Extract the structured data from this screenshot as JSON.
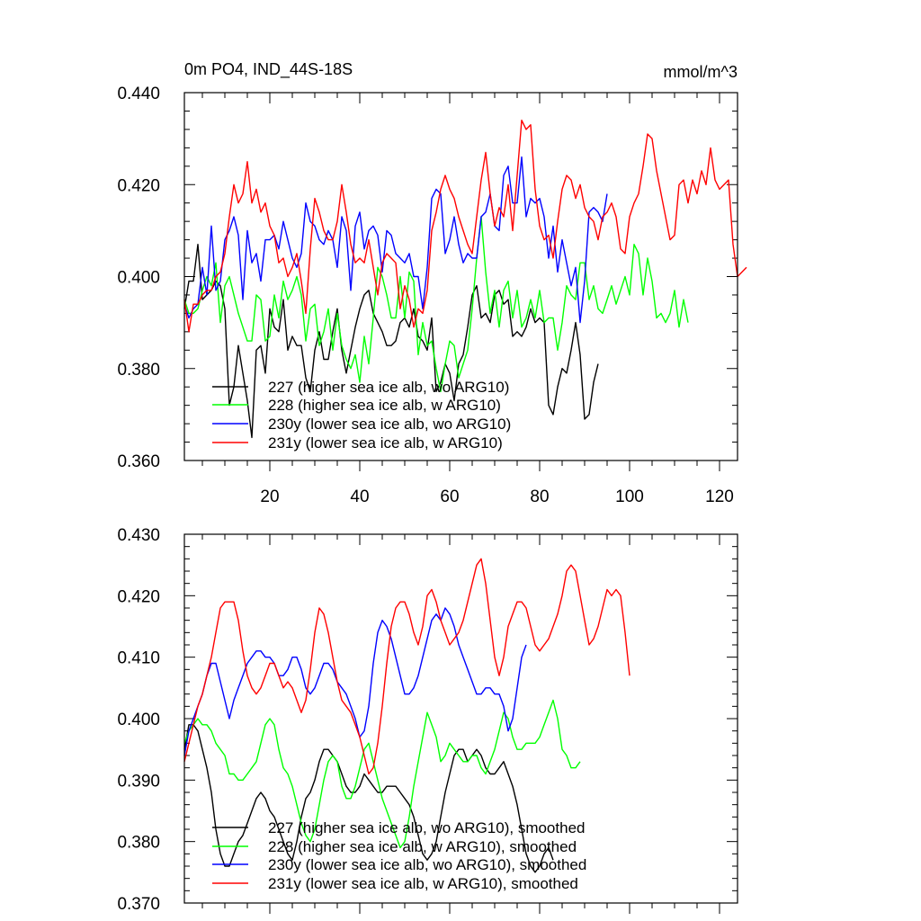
{
  "chart_data": [
    {
      "type": "line",
      "title": "0m PO4, IND_44S-18S",
      "units": "mmol/m^3",
      "xlim": [
        1,
        124
      ],
      "ylim": [
        0.36,
        0.44
      ],
      "x_ticks": [
        20,
        40,
        60,
        80,
        100,
        120
      ],
      "y_ticks": [
        "0.360",
        "0.380",
        "0.400",
        "0.420",
        "0.440"
      ],
      "legend": "bottom-left inside",
      "series": [
        {
          "name": "227 (higher sea ice alb, wo ARG10)",
          "color": "#000000",
          "y": [
            0.393,
            0.399,
            0.399,
            0.407,
            0.395,
            0.396,
            0.397,
            0.399,
            0.398,
            0.393,
            0.372,
            0.376,
            0.385,
            0.379,
            0.373,
            0.365,
            0.384,
            0.385,
            0.379,
            0.393,
            0.389,
            0.388,
            0.395,
            0.384,
            0.387,
            0.385,
            0.385,
            0.378,
            0.375,
            0.384,
            0.388,
            0.382,
            0.382,
            0.388,
            0.393,
            0.384,
            0.379,
            0.384,
            0.389,
            0.393,
            0.396,
            0.397,
            0.392,
            0.39,
            0.388,
            0.385,
            0.385,
            0.386,
            0.39,
            0.391,
            0.389,
            0.393,
            0.387,
            0.386,
            0.384,
            0.391,
            0.375,
            0.377,
            0.381,
            0.379,
            0.373,
            0.381,
            0.383,
            0.389,
            0.396,
            0.398,
            0.391,
            0.392,
            0.39,
            0.396,
            0.397,
            0.394,
            0.395,
            0.387,
            0.388,
            0.387,
            0.389,
            0.393,
            0.39,
            0.391,
            0.39,
            0.372,
            0.37,
            0.376,
            0.38,
            0.379,
            0.384,
            0.39,
            0.383,
            0.369,
            0.37,
            0.377,
            0.381
          ]
        },
        {
          "name": "228 (higher sea ice alb, w ARG10)",
          "color": "#00ff00",
          "y": [
            0.395,
            0.392,
            0.392,
            0.393,
            0.397,
            0.4,
            0.398,
            0.403,
            0.39,
            0.398,
            0.4,
            0.396,
            0.392,
            0.389,
            0.386,
            0.386,
            0.396,
            0.395,
            0.386,
            0.387,
            0.396,
            0.391,
            0.399,
            0.395,
            0.397,
            0.4,
            0.396,
            0.386,
            0.393,
            0.394,
            0.385,
            0.388,
            0.393,
            0.384,
            0.392,
            0.385,
            0.382,
            0.38,
            0.383,
            0.377,
            0.387,
            0.381,
            0.391,
            0.402,
            0.4,
            0.396,
            0.391,
            0.391,
            0.4,
            0.391,
            0.401,
            0.399,
            0.383,
            0.39,
            0.385,
            0.386,
            0.38,
            0.375,
            0.381,
            0.386,
            0.385,
            0.378,
            0.381,
            0.384,
            0.393,
            0.404,
            0.413,
            0.401,
            0.392,
            0.397,
            0.389,
            0.397,
            0.399,
            0.391,
            0.397,
            0.389,
            0.391,
            0.395,
            0.391,
            0.397,
            0.39,
            0.391,
            0.391,
            0.384,
            0.39,
            0.398,
            0.396,
            0.395,
            0.403,
            0.403,
            0.395,
            0.398,
            0.393,
            0.392,
            0.395,
            0.398,
            0.394,
            0.397,
            0.4,
            0.396,
            0.407,
            0.405,
            0.396,
            0.404,
            0.399,
            0.391,
            0.392,
            0.39,
            0.392,
            0.397,
            0.389,
            0.395,
            0.39
          ]
        },
        {
          "name": "230y (lower sea ice alb, wo ARG10)",
          "color": "#0000ff",
          "y": [
            0.394,
            0.391,
            0.393,
            0.394,
            0.402,
            0.396,
            0.411,
            0.397,
            0.399,
            0.408,
            0.41,
            0.413,
            0.409,
            0.395,
            0.41,
            0.403,
            0.405,
            0.399,
            0.408,
            0.408,
            0.409,
            0.406,
            0.412,
            0.408,
            0.404,
            0.402,
            0.405,
            0.416,
            0.412,
            0.411,
            0.408,
            0.407,
            0.41,
            0.408,
            0.402,
            0.413,
            0.41,
            0.397,
            0.411,
            0.414,
            0.406,
            0.41,
            0.411,
            0.409,
            0.401,
            0.41,
            0.409,
            0.405,
            0.404,
            0.403,
            0.405,
            0.4,
            0.4,
            0.393,
            0.402,
            0.417,
            0.419,
            0.418,
            0.405,
            0.408,
            0.413,
            0.407,
            0.403,
            0.405,
            0.404,
            0.404,
            0.413,
            0.414,
            0.418,
            0.411,
            0.41,
            0.422,
            0.424,
            0.416,
            0.416,
            0.426,
            0.413,
            0.417,
            0.416,
            0.417,
            0.413,
            0.404,
            0.411,
            0.401,
            0.408,
            0.403,
            0.398,
            0.402,
            0.39,
            0.399,
            0.414,
            0.415,
            0.414,
            0.412,
            0.418
          ]
        },
        {
          "name": "231y (lower sea ice alb, w ARG10)",
          "color": "#ff0000",
          "y": [
            0.395,
            0.388,
            0.394,
            0.394,
            0.396,
            0.397,
            0.397,
            0.4,
            0.401,
            0.405,
            0.413,
            0.42,
            0.416,
            0.418,
            0.425,
            0.416,
            0.419,
            0.414,
            0.416,
            0.411,
            0.409,
            0.403,
            0.404,
            0.4,
            0.402,
            0.405,
            0.399,
            0.392,
            0.406,
            0.417,
            0.414,
            0.41,
            0.408,
            0.408,
            0.412,
            0.42,
            0.414,
            0.407,
            0.403,
            0.404,
            0.403,
            0.408,
            0.402,
            0.396,
            0.403,
            0.405,
            0.404,
            0.403,
            0.393,
            0.398,
            0.395,
            0.389,
            0.393,
            0.392,
            0.397,
            0.41,
            0.414,
            0.419,
            0.422,
            0.419,
            0.417,
            0.413,
            0.41,
            0.407,
            0.405,
            0.413,
            0.421,
            0.427,
            0.418,
            0.411,
            0.415,
            0.413,
            0.42,
            0.41,
            0.422,
            0.434,
            0.432,
            0.433,
            0.419,
            0.411,
            0.408,
            0.409,
            0.404,
            0.412,
            0.419,
            0.422,
            0.421,
            0.417,
            0.42,
            0.415,
            0.413,
            0.412,
            0.408,
            0.413,
            0.414,
            0.416,
            0.413,
            0.406,
            0.405,
            0.413,
            0.416,
            0.418,
            0.424,
            0.431,
            0.43,
            0.423,
            0.418,
            0.413,
            0.408,
            0.409,
            0.42,
            0.421,
            0.416,
            0.421,
            0.418,
            0.423,
            0.42,
            0.428,
            0.421,
            0.419,
            0.42,
            0.421,
            0.407,
            0.4,
            0.401,
            0.402
          ]
        }
      ]
    },
    {
      "type": "line",
      "xlim": [
        1,
        124
      ],
      "ylim": [
        0.37,
        0.43
      ],
      "y_ticks": [
        "0.370",
        "0.380",
        "0.390",
        "0.400",
        "0.410",
        "0.420",
        "0.430"
      ],
      "legend": "bottom-left inside",
      "series": [
        {
          "name": "227 (higher sea ice alb, wo ARG10), smoothed",
          "color": "#000000",
          "y": [
            0.395,
            0.399,
            0.399,
            0.398,
            0.395,
            0.392,
            0.388,
            0.382,
            0.378,
            0.376,
            0.376,
            0.378,
            0.38,
            0.381,
            0.383,
            0.385,
            0.387,
            0.388,
            0.387,
            0.385,
            0.384,
            0.382,
            0.38,
            0.378,
            0.377,
            0.38,
            0.384,
            0.387,
            0.388,
            0.39,
            0.393,
            0.395,
            0.395,
            0.394,
            0.393,
            0.391,
            0.389,
            0.388,
            0.388,
            0.389,
            0.391,
            0.39,
            0.389,
            0.388,
            0.388,
            0.389,
            0.389,
            0.389,
            0.388,
            0.387,
            0.386,
            0.384,
            0.381,
            0.378,
            0.377,
            0.378,
            0.38,
            0.384,
            0.388,
            0.391,
            0.394,
            0.395,
            0.395,
            0.393,
            0.394,
            0.395,
            0.394,
            0.392,
            0.391,
            0.391,
            0.392,
            0.393,
            0.391,
            0.389,
            0.386,
            0.382,
            0.378,
            0.376,
            0.375,
            0.376,
            0.378,
            0.379,
            0.377
          ]
        },
        {
          "name": "228 (higher sea ice alb, w ARG10), smoothed",
          "color": "#00ff00",
          "y": [
            0.396,
            0.398,
            0.399,
            0.4,
            0.399,
            0.399,
            0.398,
            0.396,
            0.395,
            0.394,
            0.391,
            0.391,
            0.39,
            0.39,
            0.391,
            0.392,
            0.393,
            0.396,
            0.399,
            0.4,
            0.399,
            0.395,
            0.392,
            0.391,
            0.389,
            0.386,
            0.383,
            0.381,
            0.38,
            0.382,
            0.386,
            0.39,
            0.393,
            0.394,
            0.393,
            0.389,
            0.387,
            0.387,
            0.389,
            0.392,
            0.395,
            0.396,
            0.393,
            0.39,
            0.387,
            0.385,
            0.383,
            0.381,
            0.379,
            0.38,
            0.384,
            0.389,
            0.393,
            0.397,
            0.401,
            0.399,
            0.397,
            0.393,
            0.394,
            0.396,
            0.395,
            0.394,
            0.393,
            0.393,
            0.394,
            0.394,
            0.392,
            0.391,
            0.393,
            0.395,
            0.398,
            0.401,
            0.4,
            0.397,
            0.395,
            0.395,
            0.396,
            0.396,
            0.396,
            0.397,
            0.399,
            0.401,
            0.403,
            0.4,
            0.395,
            0.394,
            0.392,
            0.392,
            0.393
          ]
        },
        {
          "name": "230y (lower sea ice alb, wo ARG10), smoothed",
          "color": "#0000ff",
          "y": [
            0.394,
            0.398,
            0.4,
            0.402,
            0.404,
            0.407,
            0.409,
            0.409,
            0.406,
            0.403,
            0.4,
            0.403,
            0.405,
            0.407,
            0.409,
            0.41,
            0.411,
            0.411,
            0.41,
            0.41,
            0.409,
            0.407,
            0.407,
            0.408,
            0.41,
            0.41,
            0.408,
            0.405,
            0.404,
            0.405,
            0.407,
            0.409,
            0.409,
            0.408,
            0.406,
            0.405,
            0.404,
            0.402,
            0.4,
            0.397,
            0.398,
            0.402,
            0.409,
            0.414,
            0.416,
            0.415,
            0.413,
            0.41,
            0.407,
            0.404,
            0.404,
            0.405,
            0.407,
            0.41,
            0.413,
            0.416,
            0.417,
            0.416,
            0.418,
            0.417,
            0.415,
            0.412,
            0.41,
            0.408,
            0.406,
            0.404,
            0.404,
            0.405,
            0.405,
            0.404,
            0.404,
            0.402,
            0.398,
            0.4,
            0.405,
            0.41,
            0.412
          ]
        },
        {
          "name": "231y (lower sea ice alb, w ARG10), smoothed",
          "color": "#ff0000",
          "y": [
            0.393,
            0.396,
            0.399,
            0.402,
            0.404,
            0.407,
            0.41,
            0.414,
            0.418,
            0.419,
            0.419,
            0.419,
            0.416,
            0.411,
            0.407,
            0.405,
            0.404,
            0.405,
            0.407,
            0.409,
            0.409,
            0.407,
            0.405,
            0.406,
            0.405,
            0.403,
            0.401,
            0.403,
            0.408,
            0.414,
            0.418,
            0.417,
            0.414,
            0.41,
            0.406,
            0.403,
            0.402,
            0.401,
            0.399,
            0.397,
            0.394,
            0.391,
            0.392,
            0.396,
            0.402,
            0.409,
            0.415,
            0.418,
            0.419,
            0.419,
            0.417,
            0.414,
            0.412,
            0.415,
            0.42,
            0.421,
            0.419,
            0.416,
            0.414,
            0.412,
            0.413,
            0.414,
            0.416,
            0.419,
            0.422,
            0.425,
            0.426,
            0.422,
            0.416,
            0.41,
            0.407,
            0.41,
            0.415,
            0.417,
            0.419,
            0.419,
            0.418,
            0.415,
            0.412,
            0.411,
            0.412,
            0.413,
            0.415,
            0.417,
            0.42,
            0.424,
            0.425,
            0.424,
            0.42,
            0.416,
            0.412,
            0.413,
            0.415,
            0.418,
            0.421,
            0.42,
            0.421,
            0.42,
            0.414,
            0.407
          ]
        }
      ]
    }
  ]
}
